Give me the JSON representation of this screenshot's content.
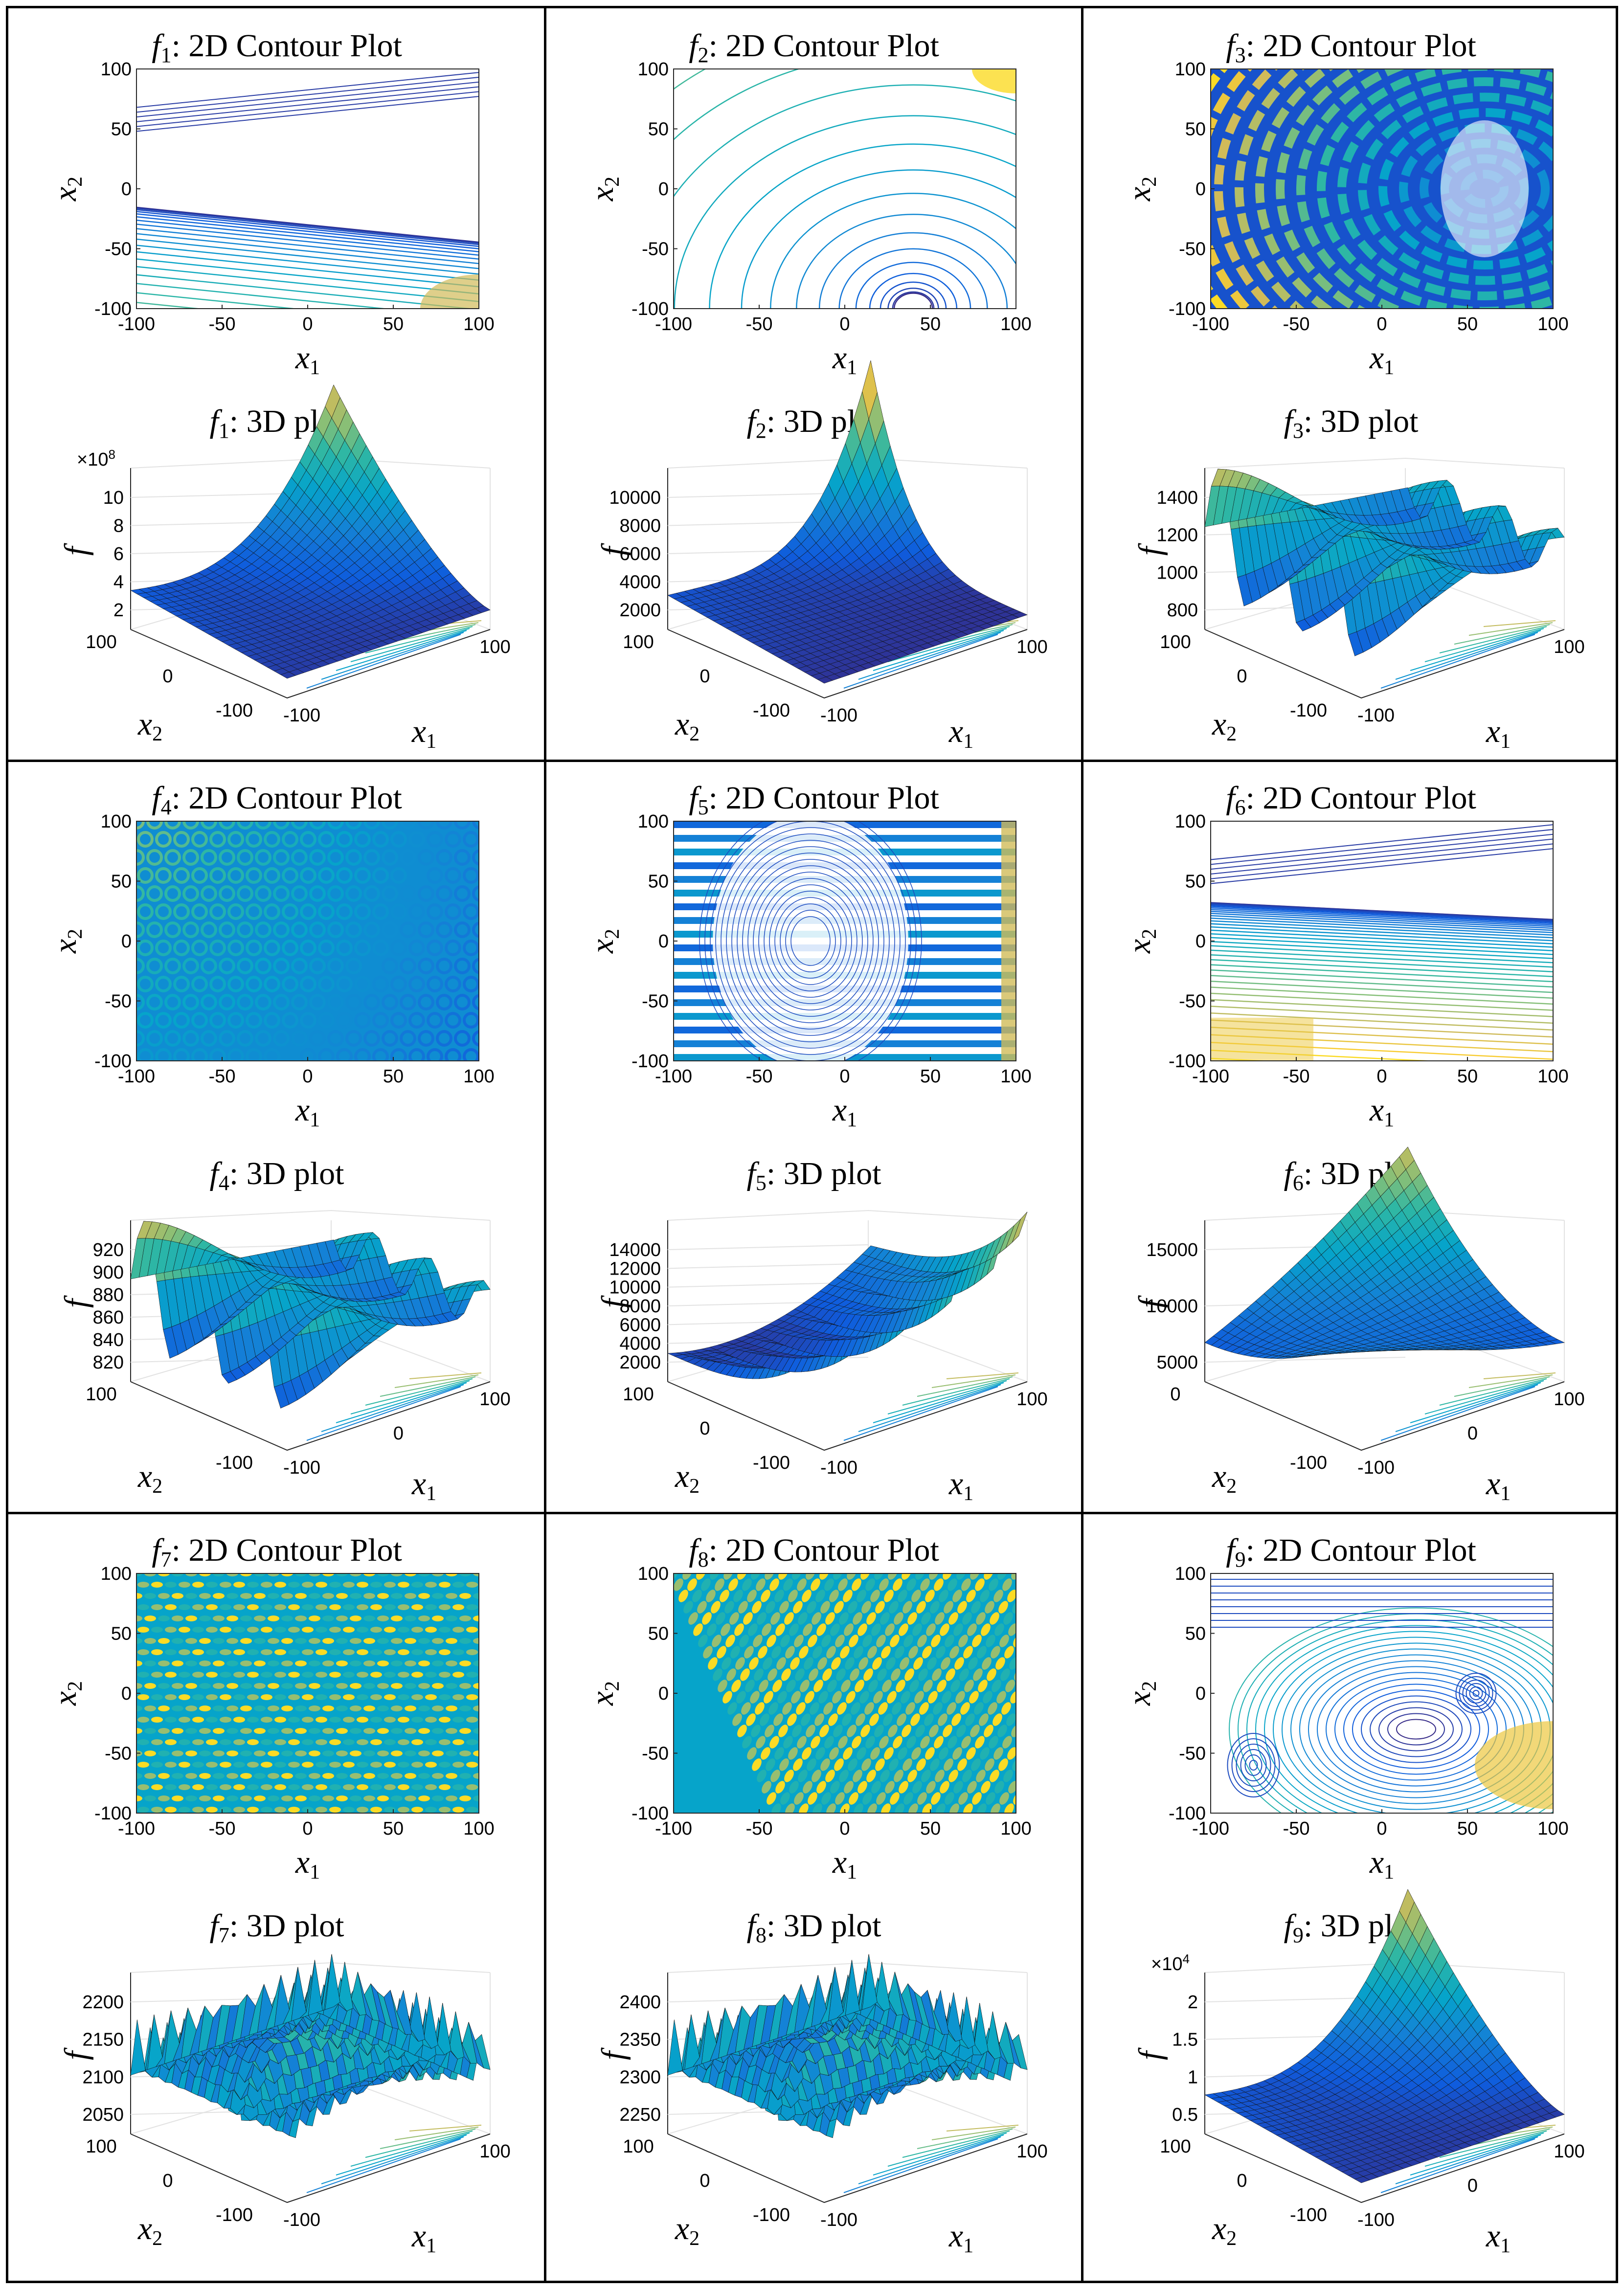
{
  "chart_data": [
    {
      "id": "f1",
      "type": "contour",
      "function": "f",
      "index": "1",
      "title": ": 2D Contour Plot",
      "xlabel": "x",
      "xlabel_sub": "1",
      "ylabel": "x",
      "ylabel_sub": "2",
      "xlim": [
        -100,
        100
      ],
      "ylim": [
        -100,
        100
      ],
      "xticks": [
        "-100",
        "-50",
        "0",
        "50",
        "100"
      ],
      "yticks": [
        "100",
        "50",
        "0",
        "-50",
        "-100"
      ],
      "pattern": "linear",
      "angle": -20,
      "peak": "bottom-right",
      "n": 30
    },
    {
      "id": "f2",
      "type": "contour",
      "function": "f",
      "index": "2",
      "title": ": 2D Contour Plot",
      "xlabel": "x",
      "xlabel_sub": "1",
      "ylabel": "x",
      "ylabel_sub": "2",
      "xlim": [
        -100,
        100
      ],
      "ylim": [
        -100,
        100
      ],
      "xticks": [
        "-100",
        "-50",
        "0",
        "50",
        "100"
      ],
      "yticks": [
        "100",
        "50",
        "0",
        "-50",
        "-100"
      ],
      "pattern": "bowl",
      "center": [
        40,
        -100
      ],
      "peak": "top-right",
      "n": 24
    },
    {
      "id": "f3",
      "type": "contour",
      "function": "f",
      "index": "3",
      "title": ": 2D Contour Plot",
      "xlabel": "x",
      "xlabel_sub": "1",
      "ylabel": "x",
      "ylabel_sub": "2",
      "xlim": [
        -100,
        100
      ],
      "ylim": [
        -100,
        100
      ],
      "xticks": [
        "-100",
        "-50",
        "0",
        "50",
        "100"
      ],
      "yticks": [
        "100",
        "50",
        "0",
        "-50",
        "-100"
      ],
      "pattern": "rings",
      "center": [
        60,
        0
      ],
      "peak": "left",
      "n": 14
    },
    {
      "id": "f1",
      "type": "surface",
      "function": "f",
      "index": "1",
      "title": ": 3D plot",
      "zlabel": "f",
      "exponent": "×10",
      "exponent_power": "8",
      "zticks": [
        "10",
        "8",
        "6",
        "4",
        "2"
      ],
      "xlabel": "x",
      "xlabel_sub": "1",
      "ylabel": "x",
      "ylabel_sub": "2",
      "xticks": [
        "-100",
        "100"
      ],
      "yticks": [
        "100",
        "0",
        "-100"
      ],
      "shape": "corner-up"
    },
    {
      "id": "f2",
      "type": "surface",
      "function": "f",
      "index": "2",
      "title": ": 3D plot",
      "zlabel": "f",
      "zticks": [
        "10000",
        "8000",
        "6000",
        "4000",
        "2000"
      ],
      "xlabel": "x",
      "xlabel_sub": "1",
      "ylabel": "x",
      "ylabel_sub": "2",
      "xticks": [
        "-100",
        "100"
      ],
      "yticks": [
        "100",
        "0",
        "-100"
      ],
      "shape": "spike"
    },
    {
      "id": "f3",
      "type": "surface",
      "function": "f",
      "index": "3",
      "title": ": 3D plot",
      "zlabel": "f",
      "zticks": [
        "1400",
        "1200",
        "1000",
        "800"
      ],
      "xlabel": "x",
      "xlabel_sub": "1",
      "ylabel": "x",
      "ylabel_sub": "2",
      "xticks": [
        "-100",
        "100"
      ],
      "yticks": [
        "100",
        "0",
        "-100"
      ],
      "shape": "waves"
    },
    {
      "id": "f4",
      "type": "contour",
      "function": "f",
      "index": "4",
      "title": ": 2D Contour Plot",
      "xlabel": "x",
      "xlabel_sub": "1",
      "ylabel": "x",
      "ylabel_sub": "2",
      "xlim": [
        -100,
        100
      ],
      "ylim": [
        -100,
        100
      ],
      "xticks": [
        "-100",
        "-50",
        "0",
        "50",
        "100"
      ],
      "yticks": [
        "100",
        "50",
        "0",
        "-50",
        "-100"
      ],
      "pattern": "lattice",
      "peak": "top-left",
      "n": 9
    },
    {
      "id": "f5",
      "type": "contour",
      "function": "f",
      "index": "5",
      "title": ": 2D Contour Plot",
      "xlabel": "x",
      "xlabel_sub": "1",
      "ylabel": "x",
      "ylabel_sub": "2",
      "xlim": [
        -100,
        100
      ],
      "ylim": [
        -100,
        100
      ],
      "xticks": [
        "-100",
        "-50",
        "0",
        "50",
        "100"
      ],
      "yticks": [
        "100",
        "50",
        "0",
        "-50",
        "-100"
      ],
      "pattern": "stripes",
      "center": [
        -20,
        0
      ],
      "peak": "right",
      "n": 18
    },
    {
      "id": "f6",
      "type": "contour",
      "function": "f",
      "index": "6",
      "title": ": 2D Contour Plot",
      "xlabel": "x",
      "xlabel_sub": "1",
      "ylabel": "x",
      "ylabel_sub": "2",
      "xlim": [
        -100,
        100
      ],
      "ylim": [
        -100,
        100
      ],
      "xticks": [
        "-100",
        "-50",
        "0",
        "50",
        "100"
      ],
      "yticks": [
        "100",
        "50",
        "0",
        "-50",
        "-100"
      ],
      "pattern": "linear",
      "angle": -10,
      "peak": "bottom-left",
      "n": 40
    },
    {
      "id": "f4",
      "type": "surface",
      "function": "f",
      "index": "4",
      "title": ": 3D plot",
      "zlabel": "f",
      "zticks": [
        "920",
        "900",
        "880",
        "860",
        "840",
        "820"
      ],
      "xlabel": "x",
      "xlabel_sub": "1",
      "ylabel": "x",
      "ylabel_sub": "2",
      "xticks": [
        "-100",
        "0",
        "100"
      ],
      "yticks": [
        "100",
        "-100"
      ],
      "shape": "waves"
    },
    {
      "id": "f5",
      "type": "surface",
      "function": "f",
      "index": "5",
      "title": ": 3D plot",
      "zlabel": "f",
      "zticks": [
        "14000",
        "12000",
        "10000",
        "8000",
        "6000",
        "4000",
        "2000"
      ],
      "xlabel": "x",
      "xlabel_sub": "1",
      "ylabel": "x",
      "ylabel_sub": "2",
      "xticks": [
        "-100",
        "100"
      ],
      "yticks": [
        "100",
        "0",
        "-100"
      ],
      "shape": "valley-spikes"
    },
    {
      "id": "f6",
      "type": "surface",
      "function": "f",
      "index": "6",
      "title": ": 3D plot",
      "zlabel": "f",
      "zticks": [
        "15000",
        "10000",
        "5000"
      ],
      "xlabel": "x",
      "xlabel_sub": "1",
      "ylabel": "x",
      "ylabel_sub": "2",
      "xticks": [
        "-100",
        "0",
        "100"
      ],
      "yticks": [
        "0",
        "-100"
      ],
      "shape": "saddle"
    },
    {
      "id": "f7",
      "type": "contour",
      "function": "f",
      "index": "7",
      "title": ": 2D Contour Plot",
      "xlabel": "x",
      "xlabel_sub": "1",
      "ylabel": "x",
      "ylabel_sub": "2",
      "xlim": [
        -100,
        100
      ],
      "ylim": [
        -100,
        100
      ],
      "xticks": [
        "-100",
        "-50",
        "0",
        "50",
        "100"
      ],
      "yticks": [
        "100",
        "50",
        "0",
        "-50",
        "-100"
      ],
      "pattern": "dense-wave",
      "n": 12
    },
    {
      "id": "f8",
      "type": "contour",
      "function": "f",
      "index": "8",
      "title": ": 2D Contour Plot",
      "xlabel": "x",
      "xlabel_sub": "1",
      "ylabel": "x",
      "ylabel_sub": "2",
      "xlim": [
        -100,
        100
      ],
      "ylim": [
        -100,
        100
      ],
      "xticks": [
        "-100",
        "-50",
        "0",
        "50",
        "100"
      ],
      "yticks": [
        "100",
        "50",
        "0",
        "-50",
        "-100"
      ],
      "pattern": "diagonal-dots",
      "n": 12
    },
    {
      "id": "f9",
      "type": "contour",
      "function": "f",
      "index": "9",
      "title": ": 2D Contour Plot",
      "xlabel": "x",
      "xlabel_sub": "1",
      "ylabel": "x",
      "ylabel_sub": "2",
      "xlim": [
        -100,
        100
      ],
      "ylim": [
        -100,
        100
      ],
      "xticks": [
        "-100",
        "-50",
        "0",
        "50",
        "100"
      ],
      "yticks": [
        "100",
        "50",
        "0",
        "-50",
        "-100"
      ],
      "pattern": "multi-basin",
      "peak": "bottom-right",
      "n": 20
    },
    {
      "id": "f7",
      "type": "surface",
      "function": "f",
      "index": "7",
      "title": ": 3D plot",
      "zlabel": "f",
      "zticks": [
        "2200",
        "2150",
        "2100",
        "2050"
      ],
      "xlabel": "x",
      "xlabel_sub": "1",
      "ylabel": "x",
      "ylabel_sub": "2",
      "xticks": [
        "-100",
        "100"
      ],
      "yticks": [
        "100",
        "0",
        "-100"
      ],
      "shape": "dense-spikes"
    },
    {
      "id": "f8",
      "type": "surface",
      "function": "f",
      "index": "8",
      "title": ": 3D plot",
      "zlabel": "f",
      "zticks": [
        "2400",
        "2350",
        "2300",
        "2250"
      ],
      "xlabel": "x",
      "xlabel_sub": "1",
      "ylabel": "x",
      "ylabel_sub": "2",
      "xticks": [
        "-100",
        "100"
      ],
      "yticks": [
        "100",
        "0",
        "-100"
      ],
      "shape": "dense-spikes"
    },
    {
      "id": "f9",
      "type": "surface",
      "function": "f",
      "index": "9",
      "title": ": 3D plot",
      "zlabel": "f",
      "exponent": "×10",
      "exponent_power": "4",
      "zticks": [
        "2",
        "1.5",
        "1",
        "0.5"
      ],
      "xlabel": "x",
      "xlabel_sub": "1",
      "ylabel": "x",
      "ylabel_sub": "2",
      "xticks": [
        "-100",
        "0",
        "100"
      ],
      "yticks": [
        "100",
        "0",
        "-100"
      ],
      "shape": "corner-up"
    }
  ]
}
